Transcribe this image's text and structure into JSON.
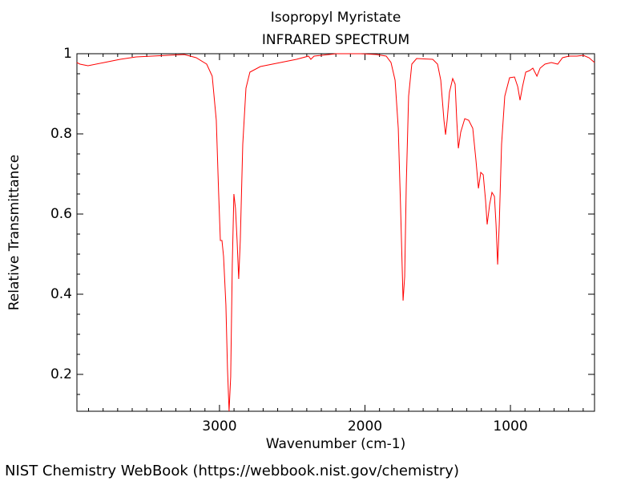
{
  "chart_data": {
    "type": "line",
    "title": "Isopropyl Myristate",
    "subtitle": "INFRARED SPECTRUM",
    "x_label": "Wavenumber (cm-1)",
    "y_label": "Relative Transmittance",
    "footer": "NIST Chemistry WebBook (https://webbook.nist.gov/chemistry)",
    "color": "#ff0000",
    "x": [
      3981,
      3959,
      3904,
      3793,
      3683,
      3573,
      3463,
      3353,
      3242,
      3160,
      3088,
      3050,
      3022,
      3006,
      2994,
      2983,
      2972,
      2956,
      2945,
      2934,
      2923,
      2912,
      2901,
      2890,
      2879,
      2868,
      2857,
      2840,
      2818,
      2791,
      2719,
      2581,
      2471,
      2388,
      2372,
      2350,
      2196,
      2030,
      1920,
      1854,
      1821,
      1793,
      1771,
      1755,
      1738,
      1727,
      1716,
      1700,
      1678,
      1645,
      1534,
      1501,
      1479,
      1457,
      1446,
      1435,
      1419,
      1397,
      1380,
      1369,
      1358,
      1342,
      1314,
      1287,
      1259,
      1237,
      1220,
      1204,
      1187,
      1171,
      1160,
      1143,
      1127,
      1110,
      1099,
      1088,
      1077,
      1061,
      1039,
      1006,
      972,
      950,
      934,
      917,
      895,
      868,
      846,
      818,
      796,
      763,
      719,
      675,
      642,
      598,
      543,
      499,
      460,
      422
    ],
    "values": [
      0.978,
      0.974,
      0.97,
      0.978,
      0.986,
      0.992,
      0.994,
      0.996,
      0.998,
      0.99,
      0.974,
      0.944,
      0.834,
      0.654,
      0.534,
      0.534,
      0.494,
      0.374,
      0.214,
      0.108,
      0.194,
      0.474,
      0.65,
      0.614,
      0.534,
      0.438,
      0.534,
      0.774,
      0.914,
      0.954,
      0.968,
      0.978,
      0.986,
      0.994,
      0.986,
      0.994,
      1.0,
      1.0,
      0.998,
      0.994,
      0.978,
      0.934,
      0.814,
      0.614,
      0.384,
      0.444,
      0.674,
      0.894,
      0.974,
      0.988,
      0.986,
      0.974,
      0.934,
      0.834,
      0.798,
      0.834,
      0.904,
      0.938,
      0.924,
      0.834,
      0.764,
      0.804,
      0.838,
      0.834,
      0.814,
      0.734,
      0.664,
      0.704,
      0.698,
      0.634,
      0.574,
      0.624,
      0.654,
      0.644,
      0.574,
      0.474,
      0.574,
      0.774,
      0.894,
      0.94,
      0.942,
      0.918,
      0.884,
      0.918,
      0.954,
      0.958,
      0.964,
      0.944,
      0.964,
      0.974,
      0.978,
      0.974,
      0.99,
      0.994,
      0.994,
      0.996,
      0.99,
      0.978
    ],
    "xlim": [
      3980,
      422
    ],
    "ylim": [
      0.108,
      1
    ],
    "xticks": [
      3000,
      2000,
      1000
    ],
    "yticks": [
      0.2,
      0.4,
      0.6,
      0.8,
      1
    ],
    "xminorticks": [
      3900,
      3800,
      3700,
      3600,
      3500,
      3400,
      3300,
      3200,
      3100,
      2900,
      2800,
      2700,
      2600,
      2500,
      2400,
      2300,
      2200,
      2100,
      1900,
      1800,
      1700,
      1600,
      1500,
      1400,
      1300,
      1200,
      1100,
      900,
      800,
      700,
      600,
      500
    ],
    "yminorticks": [
      0.15,
      0.25,
      0.3,
      0.35,
      0.45,
      0.5,
      0.55,
      0.65,
      0.7,
      0.75,
      0.85,
      0.9,
      0.95
    ]
  }
}
